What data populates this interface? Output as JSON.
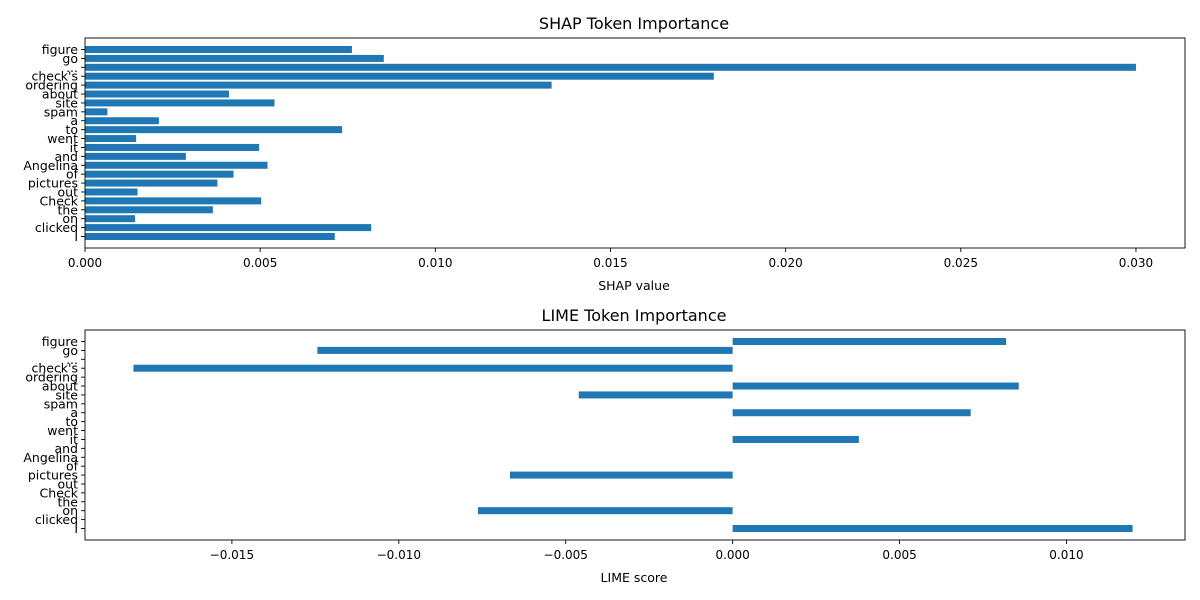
{
  "colors": {
    "bar": "#1f77b4",
    "axis": "#000000",
    "background": "#ffffff"
  },
  "chart_data": [
    {
      "type": "bar",
      "orientation": "horizontal",
      "title": "SHAP Token Importance",
      "xlabel": "SHAP value",
      "ylabel": "",
      "xlim": [
        0,
        0.0314
      ],
      "xticks": [
        0.0,
        0.005,
        0.01,
        0.015,
        0.02,
        0.025,
        0.03
      ],
      "xtick_labels": [
        "0.000",
        "0.005",
        "0.010",
        "0.015",
        "0.020",
        "0.025",
        "0.030"
      ],
      "grid": false,
      "categories": [
        "figure",
        "go",
        "...",
        "check's",
        "ordering",
        "about",
        "site",
        "spam",
        "a",
        "to",
        "went",
        "it",
        "and",
        "Angelina",
        "of",
        "pictures",
        "out",
        "Check",
        "the",
        "on",
        "clicked",
        "I"
      ],
      "values": [
        0.00762,
        0.00853,
        0.03,
        0.01795,
        0.01332,
        0.00411,
        0.00541,
        0.00064,
        0.00211,
        0.00734,
        0.00146,
        0.00497,
        0.00288,
        0.00521,
        0.00424,
        0.00378,
        0.0015,
        0.00503,
        0.00365,
        0.00143,
        0.00817,
        0.00713
      ]
    },
    {
      "type": "bar",
      "orientation": "horizontal",
      "title": "LIME Token Importance",
      "xlabel": "LIME score",
      "ylabel": "",
      "xlim": [
        -0.0194,
        0.01355
      ],
      "xticks": [
        -0.015,
        -0.01,
        -0.005,
        0.0,
        0.005,
        0.01
      ],
      "xtick_labels": [
        "−0.015",
        "−0.010",
        "−0.005",
        "0.000",
        "0.005",
        "0.010"
      ],
      "grid": false,
      "categories": [
        "figure",
        "go",
        "...",
        "check's",
        "ordering",
        "about",
        "site",
        "spam",
        "a",
        "to",
        "went",
        "it",
        "and",
        "Angelina",
        "of",
        "pictures",
        "out",
        "Check",
        "the",
        "on",
        "clicked",
        "I"
      ],
      "values": [
        0.00819,
        -0.01244,
        0,
        -0.01795,
        0,
        0.00857,
        -0.00461,
        0,
        0.00713,
        0,
        0,
        0.00378,
        0,
        0,
        0,
        -0.00667,
        0,
        0,
        0,
        -0.00763,
        0,
        0.01198
      ]
    }
  ]
}
